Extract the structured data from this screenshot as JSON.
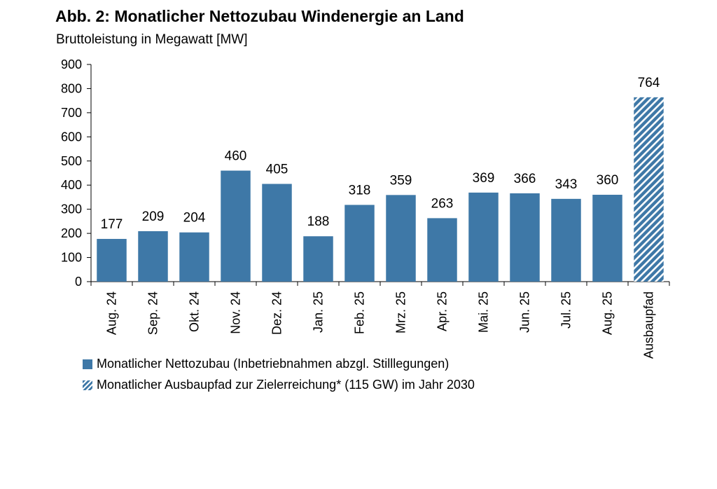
{
  "header": {
    "title": "Abb. 2: Monatlicher Nettozubau Windenergie an Land",
    "subtitle": "Bruttoleistung in Megawatt [MW]"
  },
  "legend": {
    "items": [
      {
        "label": "Monatlicher Nettozubau (Inbetriebnahmen abzgl. Stilllegungen)",
        "style": "solid"
      },
      {
        "label": "Monatlicher Ausbaupfad zur Zielerreichung* (115 GW) im Jahr 2030",
        "style": "hatched"
      }
    ]
  },
  "colors": {
    "bar": "#3E78A7",
    "hatch_light": "#ffffff",
    "axis": "#000000"
  },
  "chart_data": {
    "type": "bar",
    "title": "Abb. 2: Monatlicher Nettozubau Windenergie an Land",
    "subtitle": "Bruttoleistung in Megawatt [MW]",
    "xlabel": "",
    "ylabel": "",
    "ylim": [
      0,
      900
    ],
    "yticks": [
      "0",
      "100",
      "200",
      "300",
      "400",
      "500",
      "600",
      "700",
      "800",
      "900"
    ],
    "grid": false,
    "legend_position": "bottom",
    "categories": [
      "Aug. 24",
      "Sep. 24",
      "Okt. 24",
      "Nov. 24",
      "Dez. 24",
      "Jan. 25",
      "Feb. 25",
      "Mrz. 25",
      "Apr. 25",
      "Mai. 25",
      "Jun. 25",
      "Jul. 25",
      "Aug. 25",
      "Ausbaupfad"
    ],
    "values": [
      177,
      209,
      204,
      460,
      405,
      188,
      318,
      359,
      263,
      369,
      366,
      343,
      360,
      764
    ],
    "data_labels": [
      "177",
      "209",
      "204",
      "460",
      "405",
      "188",
      "318",
      "359",
      "263",
      "369",
      "366",
      "343",
      "360",
      "764"
    ],
    "bar_styles": [
      "solid",
      "solid",
      "solid",
      "solid",
      "solid",
      "solid",
      "solid",
      "solid",
      "solid",
      "solid",
      "solid",
      "solid",
      "solid",
      "hatched"
    ]
  }
}
